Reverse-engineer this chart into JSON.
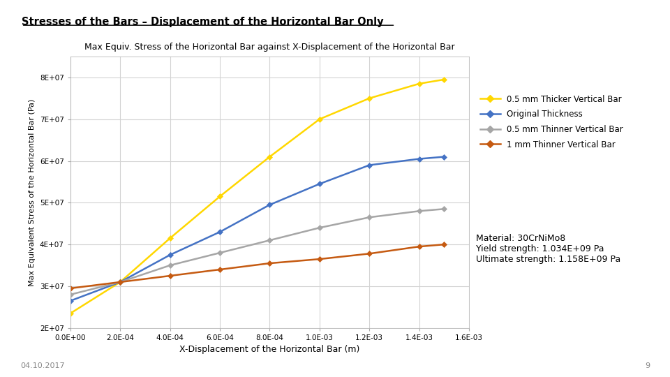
{
  "title_main": "Stresses of the Bars – Displacement of the Horizontal Bar Only",
  "title_chart": "Max Equiv. Stress of the Horizontal Bar against X-Displacement of the Horizontal Bar",
  "xlabel": "X-Displacement of the Horizontal Bar (m)",
  "ylabel": "Max Equivalent Stress of the Horizontal Bar (Pa)",
  "x_data": [
    0.0,
    0.0002,
    0.0004,
    0.0006,
    0.0008,
    0.001,
    0.0012,
    0.0014,
    0.0015
  ],
  "series": [
    {
      "label": "0.5 mm Thicker Vertical Bar",
      "color": "#FFD700",
      "y_data": [
        23500000.0,
        31000000.0,
        41500000.0,
        51500000.0,
        61000000.0,
        70000000.0,
        75000000.0,
        78500000.0,
        79500000.0
      ]
    },
    {
      "label": "Original Thickness",
      "color": "#4472C4",
      "y_data": [
        26500000.0,
        31000000.0,
        37500000.0,
        43000000.0,
        49500000.0,
        54500000.0,
        59000000.0,
        60500000.0,
        61000000.0
      ]
    },
    {
      "label": "0.5 mm Thinner Vertical Bar",
      "color": "#A6A6A6",
      "y_data": [
        28000000.0,
        31000000.0,
        35000000.0,
        38000000.0,
        41000000.0,
        44000000.0,
        46500000.0,
        48000000.0,
        48500000.0
      ]
    },
    {
      "label": "1 mm Thinner Vertical Bar",
      "color": "#C55A11",
      "y_data": [
        29500000.0,
        31000000.0,
        32500000.0,
        34000000.0,
        35500000.0,
        36500000.0,
        37800000.0,
        39500000.0,
        40000000.0
      ]
    }
  ],
  "xlim": [
    0.0,
    0.0016
  ],
  "ylim": [
    20000000.0,
    85000000.0
  ],
  "yticks": [
    20000000.0,
    30000000.0,
    40000000.0,
    50000000.0,
    60000000.0,
    70000000.0,
    80000000.0
  ],
  "ytick_labels": [
    "2E+07",
    "3E+07",
    "4E+07",
    "5E+07",
    "6E+07",
    "7E+07",
    "8E+07"
  ],
  "xticks": [
    0.0,
    0.0002,
    0.0004,
    0.0006,
    0.0008,
    0.001,
    0.0012,
    0.0014,
    0.0016
  ],
  "xtick_labels": [
    "0.0E+00",
    "2.0E-04",
    "4.0E-04",
    "6.0E-04",
    "8.0E-04",
    "1.0E-03",
    "1.2E-03",
    "1.4E-03",
    "1.6E-03"
  ],
  "material_text": "Material: 30CrNiMo8\nYield strength: 1.034E+09 Pa\nUltimate strength: 1.158E+09 Pa",
  "date_text": "04.10.2017",
  "page_text": "9",
  "background_color": "#FFFFFF",
  "grid_color": "#D3D3D3"
}
